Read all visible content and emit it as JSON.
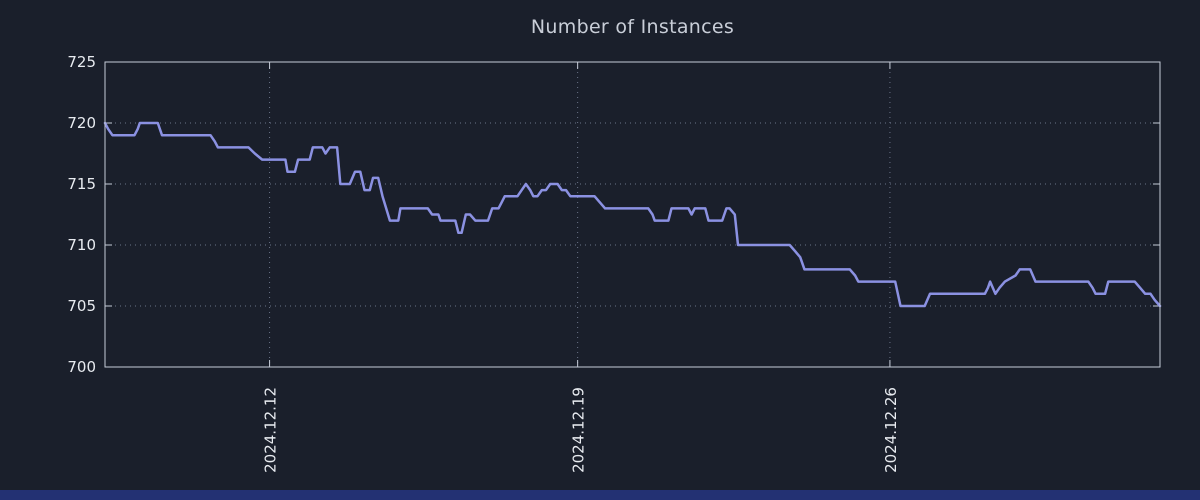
{
  "title": "Number of Instances",
  "colors": {
    "background": "#1a1f2b",
    "line": "#8b91e2",
    "grid": "#6b7489",
    "border": "#c6ccd8",
    "tick_text": "#e8ebf0",
    "title_text": "#c9ced8",
    "bottom_strip": "#233173"
  },
  "chart_data": {
    "type": "line",
    "title": "Number of Instances",
    "xlabel": "",
    "ylabel": "",
    "ylim": [
      700,
      725
    ],
    "yticks": [
      700,
      705,
      710,
      715,
      720,
      725
    ],
    "xticks": [
      {
        "f": 0.156,
        "label": "2024.12.12"
      },
      {
        "f": 0.448,
        "label": "2024.12.19"
      },
      {
        "f": 0.744,
        "label": "2024.12.26"
      }
    ],
    "grid": "dotted",
    "legend": "none",
    "series_name": "Number of Instances",
    "points": [
      [
        0.0,
        720
      ],
      [
        0.003,
        719.5
      ],
      [
        0.007,
        719
      ],
      [
        0.028,
        719
      ],
      [
        0.031,
        719.5
      ],
      [
        0.033,
        720
      ],
      [
        0.05,
        720
      ],
      [
        0.054,
        719
      ],
      [
        0.1,
        719
      ],
      [
        0.104,
        718.5
      ],
      [
        0.107,
        718
      ],
      [
        0.136,
        718
      ],
      [
        0.142,
        717.5
      ],
      [
        0.149,
        717
      ],
      [
        0.171,
        717
      ],
      [
        0.173,
        716
      ],
      [
        0.18,
        716
      ],
      [
        0.183,
        717
      ],
      [
        0.194,
        717
      ],
      [
        0.197,
        718
      ],
      [
        0.206,
        718
      ],
      [
        0.209,
        717.5
      ],
      [
        0.213,
        718
      ],
      [
        0.22,
        718
      ],
      [
        0.223,
        715
      ],
      [
        0.232,
        715
      ],
      [
        0.237,
        716
      ],
      [
        0.242,
        716
      ],
      [
        0.246,
        714.5
      ],
      [
        0.251,
        714.5
      ],
      [
        0.254,
        715.5
      ],
      [
        0.259,
        715.5
      ],
      [
        0.263,
        714
      ],
      [
        0.27,
        712
      ],
      [
        0.278,
        712
      ],
      [
        0.28,
        713
      ],
      [
        0.306,
        713
      ],
      [
        0.31,
        712.5
      ],
      [
        0.316,
        712.5
      ],
      [
        0.318,
        712
      ],
      [
        0.332,
        712
      ],
      [
        0.335,
        711
      ],
      [
        0.338,
        711
      ],
      [
        0.342,
        712.5
      ],
      [
        0.346,
        712.5
      ],
      [
        0.351,
        712
      ],
      [
        0.363,
        712
      ],
      [
        0.367,
        713
      ],
      [
        0.373,
        713
      ],
      [
        0.376,
        713.5
      ],
      [
        0.379,
        714
      ],
      [
        0.391,
        714
      ],
      [
        0.395,
        714.5
      ],
      [
        0.399,
        715
      ],
      [
        0.403,
        714.5
      ],
      [
        0.406,
        714
      ],
      [
        0.41,
        714
      ],
      [
        0.414,
        714.5
      ],
      [
        0.418,
        714.5
      ],
      [
        0.422,
        715
      ],
      [
        0.429,
        715
      ],
      [
        0.433,
        714.5
      ],
      [
        0.437,
        714.5
      ],
      [
        0.441,
        714
      ],
      [
        0.464,
        714
      ],
      [
        0.469,
        713.5
      ],
      [
        0.474,
        713
      ],
      [
        0.515,
        713
      ],
      [
        0.519,
        712.5
      ],
      [
        0.521,
        712
      ],
      [
        0.534,
        712
      ],
      [
        0.537,
        713
      ],
      [
        0.553,
        713
      ],
      [
        0.556,
        712.5
      ],
      [
        0.559,
        713
      ],
      [
        0.569,
        713
      ],
      [
        0.572,
        712
      ],
      [
        0.585,
        712
      ],
      [
        0.589,
        713
      ],
      [
        0.592,
        713
      ],
      [
        0.597,
        712.5
      ],
      [
        0.6,
        710
      ],
      [
        0.649,
        710
      ],
      [
        0.654,
        709.5
      ],
      [
        0.659,
        709
      ],
      [
        0.663,
        708
      ],
      [
        0.706,
        708
      ],
      [
        0.711,
        707.5
      ],
      [
        0.714,
        707
      ],
      [
        0.749,
        707
      ],
      [
        0.754,
        705
      ],
      [
        0.757,
        705
      ],
      [
        0.777,
        705
      ],
      [
        0.782,
        706
      ],
      [
        0.834,
        706
      ],
      [
        0.837,
        706.5
      ],
      [
        0.839,
        707
      ],
      [
        0.844,
        706
      ],
      [
        0.848,
        706.5
      ],
      [
        0.853,
        707
      ],
      [
        0.863,
        707.5
      ],
      [
        0.867,
        708
      ],
      [
        0.877,
        708
      ],
      [
        0.882,
        707
      ],
      [
        0.932,
        707
      ],
      [
        0.936,
        706.5
      ],
      [
        0.939,
        706
      ],
      [
        0.948,
        706
      ],
      [
        0.951,
        707
      ],
      [
        0.976,
        707
      ],
      [
        0.981,
        706.5
      ],
      [
        0.986,
        706
      ],
      [
        0.991,
        706
      ],
      [
        0.995,
        705.5
      ],
      [
        1.0,
        705
      ]
    ]
  }
}
